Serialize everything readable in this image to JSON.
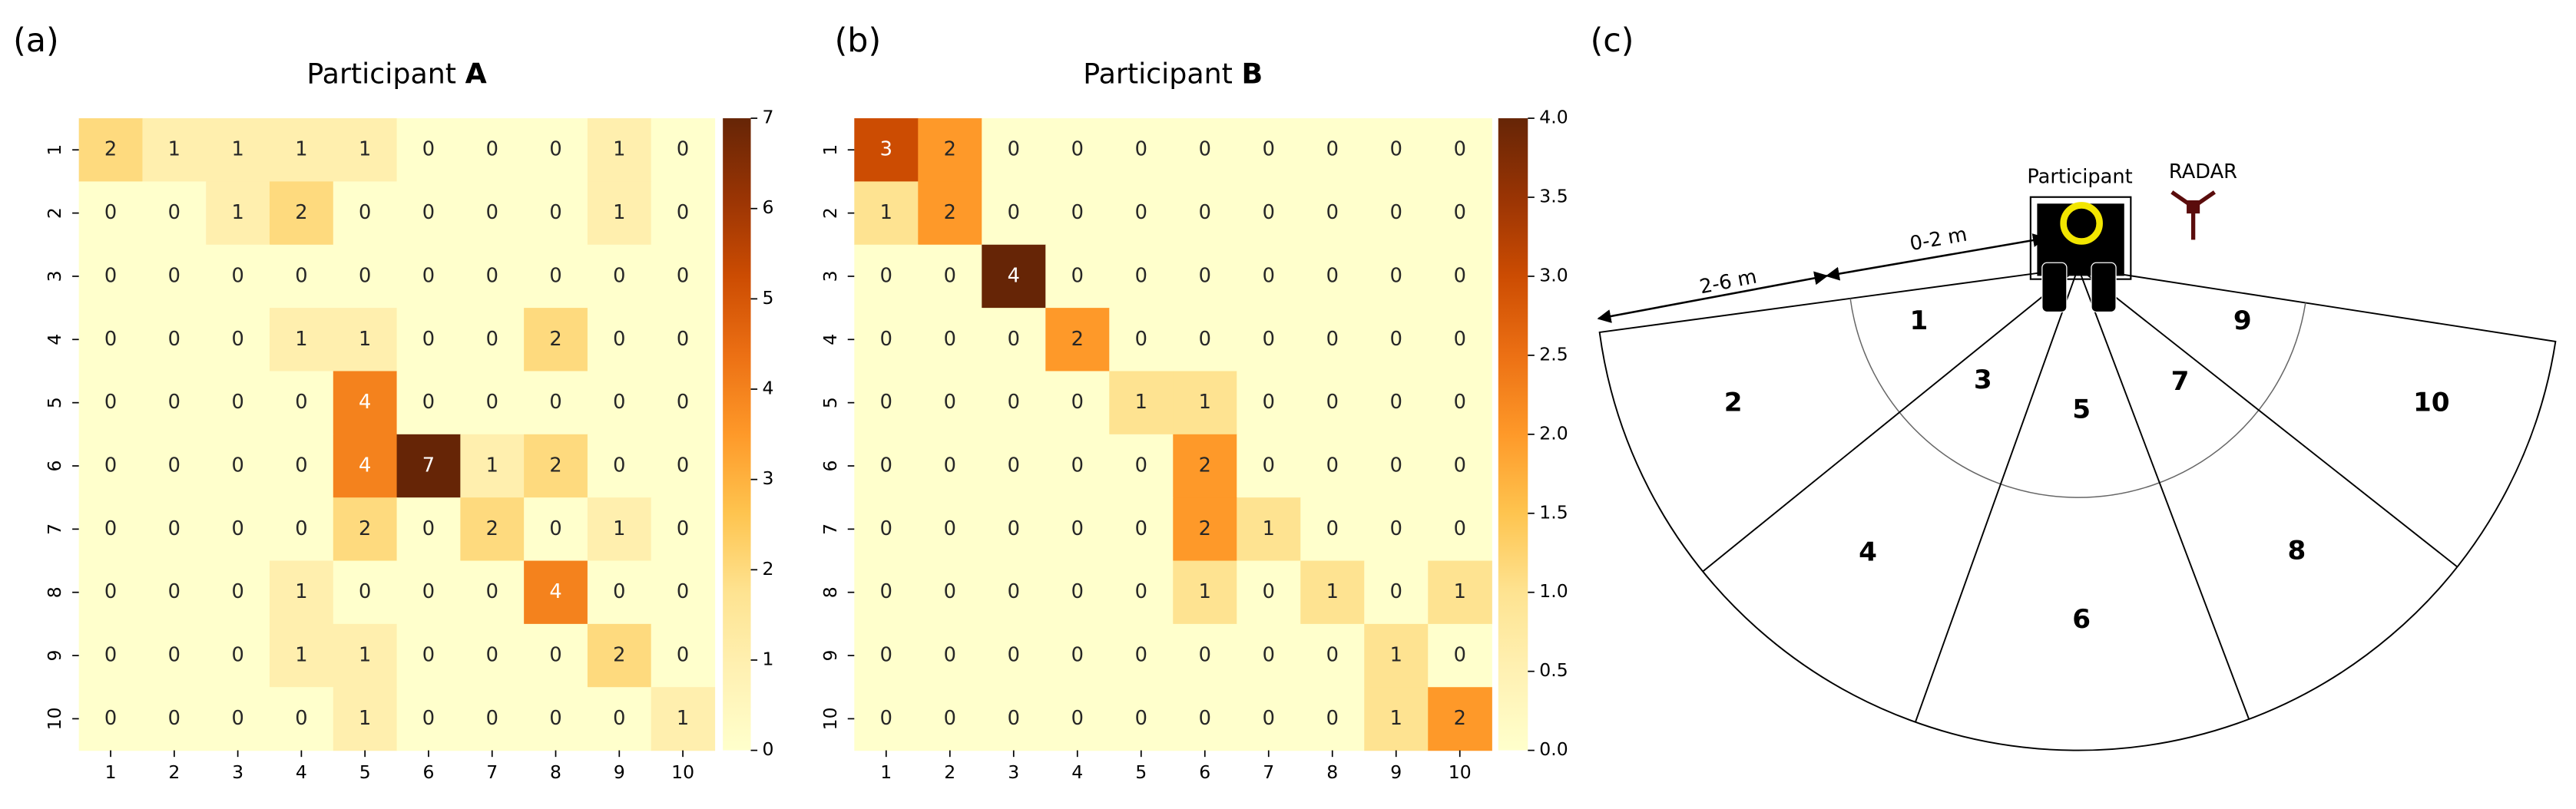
{
  "panels": [
    "(a)",
    "(b)",
    "(c)"
  ],
  "chart_data": [
    {
      "type": "heatmap",
      "title": "Participant A",
      "x_categories": [
        "1",
        "2",
        "3",
        "4",
        "5",
        "6",
        "7",
        "8",
        "9",
        "10"
      ],
      "y_categories": [
        "1",
        "2",
        "3",
        "4",
        "5",
        "6",
        "7",
        "8",
        "9",
        "10"
      ],
      "values": [
        [
          2,
          1,
          1,
          1,
          1,
          0,
          0,
          0,
          1,
          0
        ],
        [
          0,
          0,
          1,
          2,
          0,
          0,
          0,
          0,
          1,
          0
        ],
        [
          0,
          0,
          0,
          0,
          0,
          0,
          0,
          0,
          0,
          0
        ],
        [
          0,
          0,
          0,
          1,
          1,
          0,
          0,
          2,
          0,
          0
        ],
        [
          0,
          0,
          0,
          0,
          4,
          0,
          0,
          0,
          0,
          0
        ],
        [
          0,
          0,
          0,
          0,
          4,
          7,
          1,
          2,
          0,
          0
        ],
        [
          0,
          0,
          0,
          0,
          2,
          0,
          2,
          0,
          1,
          0
        ],
        [
          0,
          0,
          0,
          1,
          0,
          0,
          0,
          4,
          0,
          0
        ],
        [
          0,
          0,
          0,
          1,
          1,
          0,
          0,
          0,
          2,
          0
        ],
        [
          0,
          0,
          0,
          0,
          1,
          0,
          0,
          0,
          0,
          1
        ]
      ],
      "zlim": [
        0,
        7
      ],
      "zticks": [
        0,
        1,
        2,
        3,
        4,
        5,
        6,
        7
      ],
      "colormap": [
        "#ffffcc",
        "#fff1b3",
        "#fee391",
        "#fec44f",
        "#fe9929",
        "#ec7014",
        "#cc4c02",
        "#993404",
        "#662506"
      ]
    },
    {
      "type": "heatmap",
      "title": "Participant B",
      "x_categories": [
        "1",
        "2",
        "3",
        "4",
        "5",
        "6",
        "7",
        "8",
        "9",
        "10"
      ],
      "y_categories": [
        "1",
        "2",
        "3",
        "4",
        "5",
        "6",
        "7",
        "8",
        "9",
        "10"
      ],
      "values": [
        [
          3,
          2,
          0,
          0,
          0,
          0,
          0,
          0,
          0,
          0
        ],
        [
          1,
          2,
          0,
          0,
          0,
          0,
          0,
          0,
          0,
          0
        ],
        [
          0,
          0,
          4,
          0,
          0,
          0,
          0,
          0,
          0,
          0
        ],
        [
          0,
          0,
          0,
          2,
          0,
          0,
          0,
          0,
          0,
          0
        ],
        [
          0,
          0,
          0,
          0,
          1,
          1,
          0,
          0,
          0,
          0
        ],
        [
          0,
          0,
          0,
          0,
          0,
          2,
          0,
          0,
          0,
          0
        ],
        [
          0,
          0,
          0,
          0,
          0,
          2,
          1,
          0,
          0,
          0
        ],
        [
          0,
          0,
          0,
          0,
          0,
          1,
          0,
          1,
          0,
          1
        ],
        [
          0,
          0,
          0,
          0,
          0,
          0,
          0,
          0,
          1,
          0
        ],
        [
          0,
          0,
          0,
          0,
          0,
          0,
          0,
          0,
          1,
          2
        ]
      ],
      "zlim": [
        0,
        4
      ],
      "zticks": [
        {
          "value": 0,
          "label": "0.0"
        },
        {
          "value": 0.5,
          "label": "0.5"
        },
        {
          "value": 1,
          "label": "1.0"
        },
        {
          "value": 1.5,
          "label": "1.5"
        },
        {
          "value": 2,
          "label": "2.0"
        },
        {
          "value": 2.5,
          "label": "2.5"
        },
        {
          "value": 3,
          "label": "3.0"
        },
        {
          "value": 3.5,
          "label": "3.5"
        },
        {
          "value": 4,
          "label": "4.0"
        }
      ],
      "colormap": [
        "#ffffcc",
        "#fff1b3",
        "#fee391",
        "#fec44f",
        "#fe9929",
        "#ec7014",
        "#cc4c02",
        "#993404",
        "#662506"
      ]
    }
  ],
  "diagram": {
    "participant": "Participant",
    "radar": "RADAR",
    "near_range": "0-2 m",
    "far_range": "2-6 m",
    "zones": [
      "1",
      "2",
      "3",
      "4",
      "5",
      "6",
      "7",
      "8",
      "9",
      "10"
    ]
  }
}
